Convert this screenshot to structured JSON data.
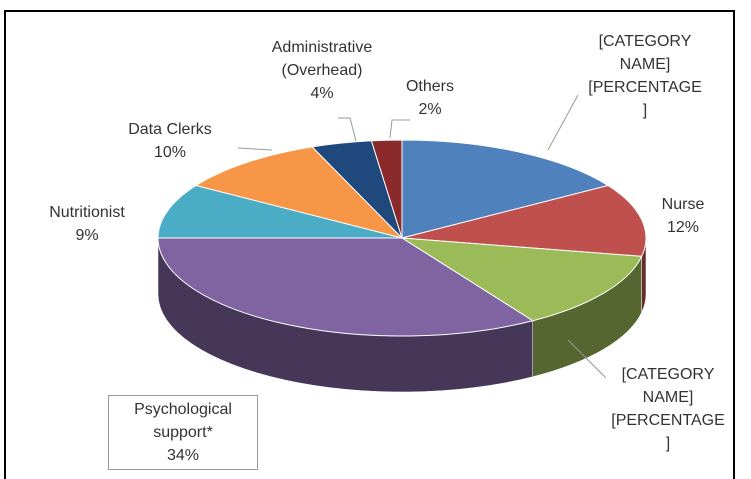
{
  "chart_data": {
    "type": "pie3d",
    "categories": [
      "[CATEGORY NAME]",
      "Nurse",
      "[CATEGORY NAME]",
      "Psychological support*",
      "Nutritionist",
      "Data Clerks",
      "Administrative (Overhead)",
      "Others"
    ],
    "values": [
      16,
      12,
      13,
      34,
      9,
      10,
      4,
      2
    ],
    "value_labels": [
      "[PERCENTAGE]",
      "12%",
      "[PERCENTAGE]",
      "34%",
      "9%",
      "10%",
      "4%",
      "2%"
    ],
    "colors": [
      "#4f81bd",
      "#c0504d",
      "#9bbb59",
      "#8064a2",
      "#4bacc6",
      "#f79646",
      "#1f497d",
      "#8b2a2a"
    ]
  }
}
